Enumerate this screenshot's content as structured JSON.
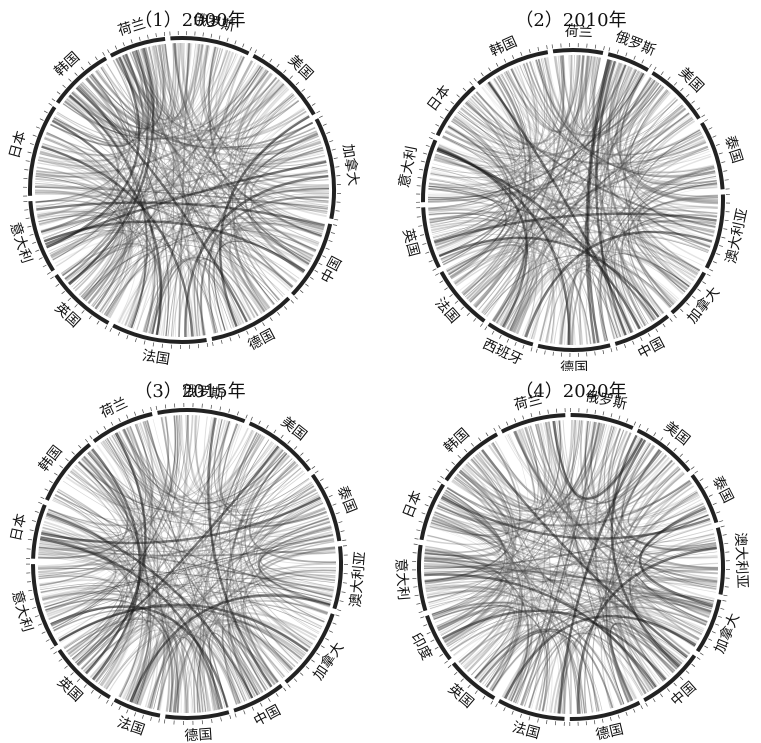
{
  "panels": [
    {
      "title": "（1）2000年",
      "countries": [
        "美国",
        "加拿大",
        "中国",
        "德国",
        "法国",
        "英国",
        "意大利",
        "日本",
        "韩国",
        "荷兰",
        "俄罗斯"
      ]
    },
    {
      "title": "（2）2010年",
      "countries": [
        "美国",
        "泰国",
        "澳大利亚",
        "加拿大",
        "中国",
        "德国",
        "西班牙",
        "法国",
        "英国",
        "意大利",
        "日本",
        "韩国",
        "荷兰",
        "俄罗斯"
      ]
    },
    {
      "title": "（3）2015年",
      "countries": [
        "美国",
        "泰国",
        "澳大利亚",
        "加拿大",
        "中国",
        "德国",
        "法国",
        "英国",
        "意大利",
        "日本",
        "韩国",
        "荷兰",
        "俄罗斯"
      ]
    },
    {
      "title": "（4）2020年",
      "countries": [
        "美国",
        "泰国",
        "澳大利亚",
        "加拿大",
        "中国",
        "德国",
        "法国",
        "英国",
        "印度",
        "意大利",
        "日本",
        "韩国",
        "荷兰",
        "俄罗斯"
      ]
    }
  ]
}
